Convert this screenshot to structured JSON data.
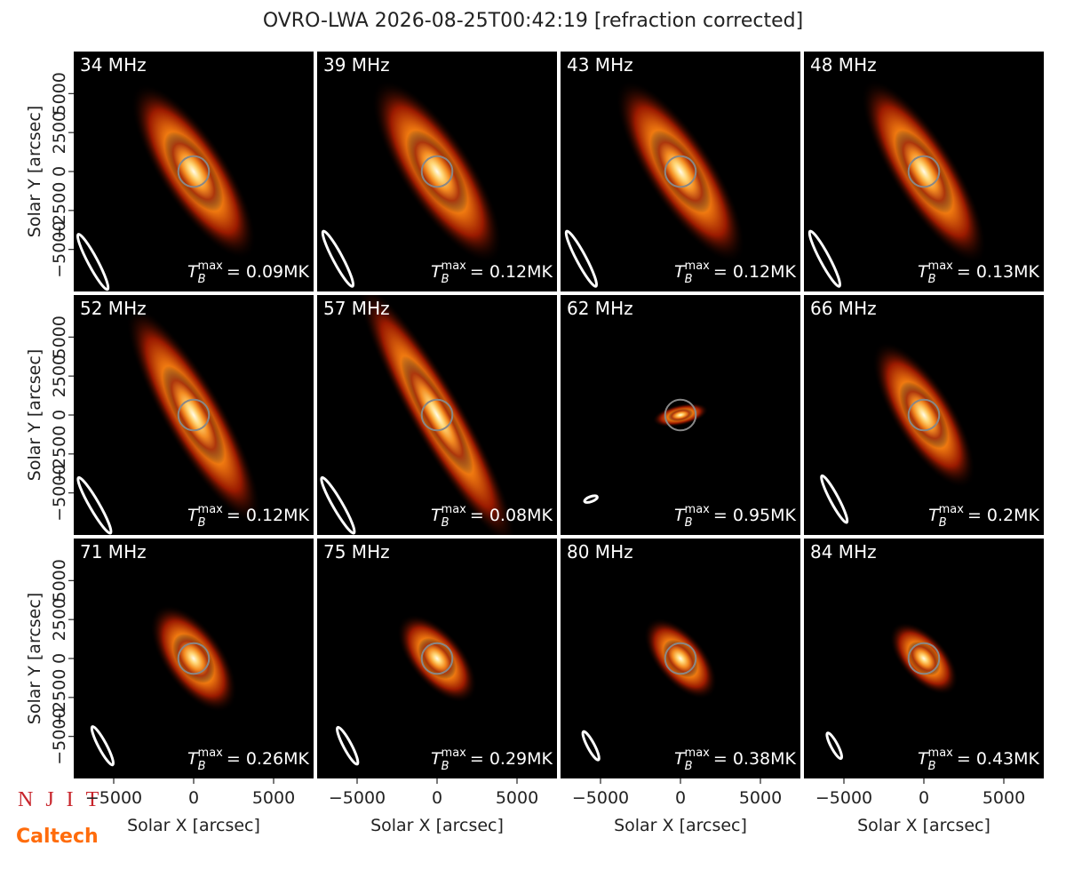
{
  "title": "OVRO-LWA 2026-08-25T00:42:19 [refraction corrected]",
  "panels": [
    {
      "freq": "34 MHz",
      "tmax": "= 0.09MK"
    },
    {
      "freq": "39 MHz",
      "tmax": "= 0.12MK"
    },
    {
      "freq": "43 MHz",
      "tmax": "= 0.12MK"
    },
    {
      "freq": "48 MHz",
      "tmax": "= 0.13MK"
    },
    {
      "freq": "52 MHz",
      "tmax": "= 0.12MK"
    },
    {
      "freq": "57 MHz",
      "tmax": "= 0.08MK"
    },
    {
      "freq": "62 MHz",
      "tmax": "= 0.95MK"
    },
    {
      "freq": "66 MHz",
      "tmax": "= 0.2MK"
    },
    {
      "freq": "71 MHz",
      "tmax": "= 0.26MK"
    },
    {
      "freq": "75 MHz",
      "tmax": "= 0.29MK"
    },
    {
      "freq": "80 MHz",
      "tmax": "= 0.38MK"
    },
    {
      "freq": "84 MHz",
      "tmax": "= 0.43MK"
    }
  ],
  "tmax_symbol": {
    "base": "T",
    "sub": "B",
    "sup": "max"
  },
  "axes": {
    "xlabel": "Solar X [arcsec]",
    "ylabel": "Solar Y [arcsec]",
    "xlim": [
      -7500,
      7500
    ],
    "ylim": [
      -7700,
      7700
    ],
    "xticks": [
      {
        "value": -5000,
        "label": "−5000"
      },
      0,
      5000
    ],
    "yticks": [
      {
        "value": -5000,
        "label": "−5000"
      },
      {
        "value": -2500,
        "label": "−2500"
      },
      0,
      2500,
      5000
    ]
  },
  "logos": [
    "NJIT",
    "Caltech"
  ]
}
